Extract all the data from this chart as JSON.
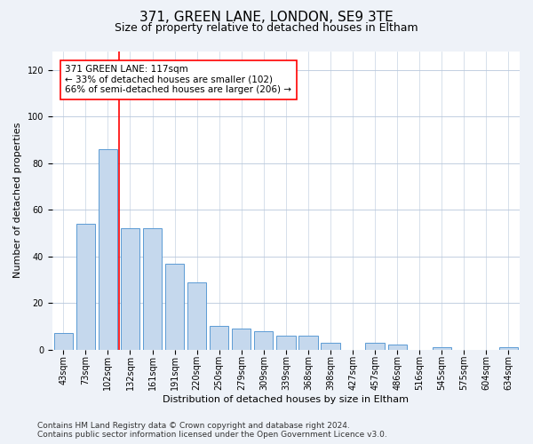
{
  "title1": "371, GREEN LANE, LONDON, SE9 3TE",
  "title2": "Size of property relative to detached houses in Eltham",
  "xlabel": "Distribution of detached houses by size in Eltham",
  "ylabel": "Number of detached properties",
  "categories": [
    "43sqm",
    "73sqm",
    "102sqm",
    "132sqm",
    "161sqm",
    "191sqm",
    "220sqm",
    "250sqm",
    "279sqm",
    "309sqm",
    "339sqm",
    "368sqm",
    "398sqm",
    "427sqm",
    "457sqm",
    "486sqm",
    "516sqm",
    "545sqm",
    "575sqm",
    "604sqm",
    "634sqm"
  ],
  "values": [
    7,
    54,
    86,
    52,
    52,
    37,
    29,
    10,
    9,
    8,
    6,
    6,
    3,
    0,
    3,
    2,
    0,
    1,
    0,
    0,
    1
  ],
  "bar_color": "#c5d8ed",
  "bar_edge_color": "#5b9bd5",
  "annotation_box_text": "371 GREEN LANE: 117sqm\n← 33% of detached houses are smaller (102)\n66% of semi-detached houses are larger (206) →",
  "red_line_x": 2.5,
  "ylim_max": 128,
  "yticks": [
    0,
    20,
    40,
    60,
    80,
    100,
    120
  ],
  "bg_color": "#eef2f8",
  "plot_bg_color": "#ffffff",
  "title1_fontsize": 11,
  "title2_fontsize": 9,
  "ylabel_fontsize": 8,
  "xlabel_fontsize": 8,
  "tick_fontsize": 7,
  "annot_fontsize": 7.5,
  "footer_fontsize": 6.5,
  "footer1": "Contains HM Land Registry data © Crown copyright and database right 2024.",
  "footer2": "Contains public sector information licensed under the Open Government Licence v3.0."
}
